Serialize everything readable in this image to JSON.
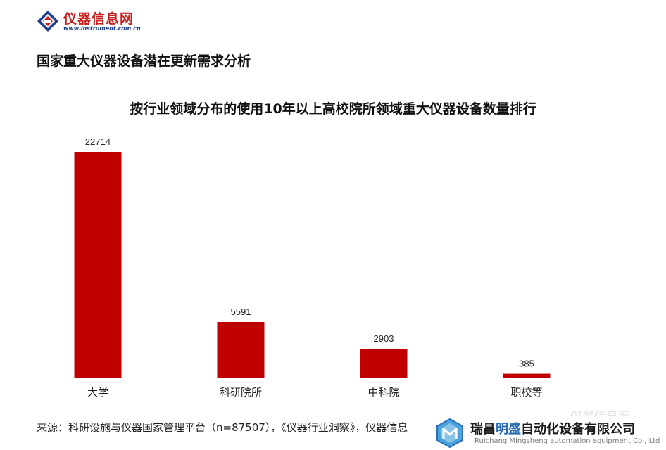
{
  "header": {
    "logo_name": "仪器信息网",
    "logo_url": "www.instrument.com.cn",
    "section_title": "国家重大仪器设备潜在更新需求分析"
  },
  "chart_data": {
    "type": "bar",
    "title": "按行业领域分布的使用10年以上高校院所领域重大仪器设备数量排行",
    "categories": [
      "大学",
      "科研院所",
      "中科院",
      "职校等"
    ],
    "values": [
      22714,
      5591,
      2903,
      385
    ],
    "xlabel": "",
    "ylabel": "",
    "ylim": [
      0,
      22714
    ],
    "grid": false,
    "legend": "none",
    "bar_color": "#c00000",
    "data_labels": true
  },
  "footer": {
    "source": "来源：科研设施与仪器国家管理平台（n=87507），《仪器行业洞察》，仪器信息",
    "watermark": "仪器信息网",
    "brand_name_a": "瑞昌",
    "brand_name_b": "明盛",
    "brand_name_c": "自动化设备有限公司",
    "brand_sub": "Ruichang Mingsheng automation equipment Co., Ltd",
    "brand_accent": "#2a6fb5"
  }
}
